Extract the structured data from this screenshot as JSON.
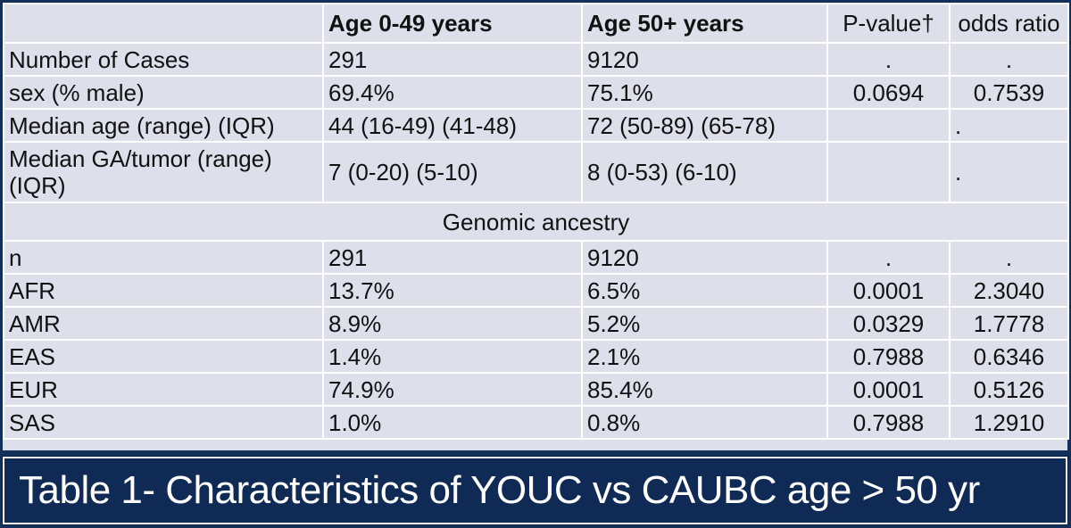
{
  "table": {
    "headers": [
      "",
      "Age 0-49 years",
      "Age 50+ years",
      "P-value†",
      "odds ratio"
    ],
    "rows": [
      [
        "Number of Cases",
        "291",
        "9120",
        ".",
        "."
      ],
      [
        "sex (% male)",
        "69.4%",
        "75.1%",
        "0.0694",
        "0.7539"
      ],
      [
        "Median age (range) (IQR)",
        "44 (16-49) (41-48)",
        "72 (50-89) (65-78)",
        "",
        "."
      ],
      [
        "Median GA/tumor (range) (IQR)",
        "7 (0-20) (5-10)",
        "8 (0-53) (6-10)",
        "",
        "."
      ]
    ],
    "section_title": "Genomic ancestry",
    "ancestry_rows": [
      [
        "n",
        "291",
        "9120",
        ".",
        "."
      ],
      [
        "AFR",
        "13.7%",
        "6.5%",
        "0.0001",
        "2.3040"
      ],
      [
        "AMR",
        "8.9%",
        "5.2%",
        "0.0329",
        "1.7778"
      ],
      [
        "EAS",
        "1.4%",
        "2.1%",
        "0.7988",
        "0.6346"
      ],
      [
        "EUR",
        "74.9%",
        "85.4%",
        "0.0001",
        "0.5126"
      ],
      [
        "SAS",
        "1.0%",
        "0.8%",
        "0.7988",
        "1.2910"
      ]
    ]
  },
  "caption": "Table 1- Characteristics of YOUC vs CAUBC age > 50 yr",
  "colors": {
    "background": "#12305a",
    "cell": "#dde0ea",
    "caption_bg": "#102a56"
  }
}
